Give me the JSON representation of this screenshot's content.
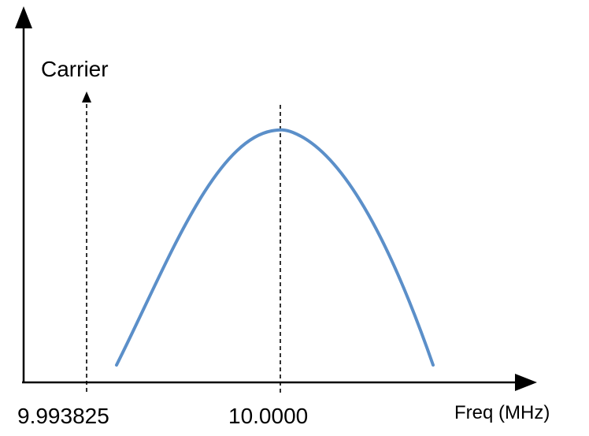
{
  "diagram": {
    "carrier_label": "Carrier",
    "x_axis_label": "Freq (MHz)",
    "ticks": [
      {
        "label": "9.993825"
      },
      {
        "label": "10.0000"
      }
    ]
  },
  "colors": {
    "axis": "#000000",
    "curve": "#5b8fc9"
  }
}
